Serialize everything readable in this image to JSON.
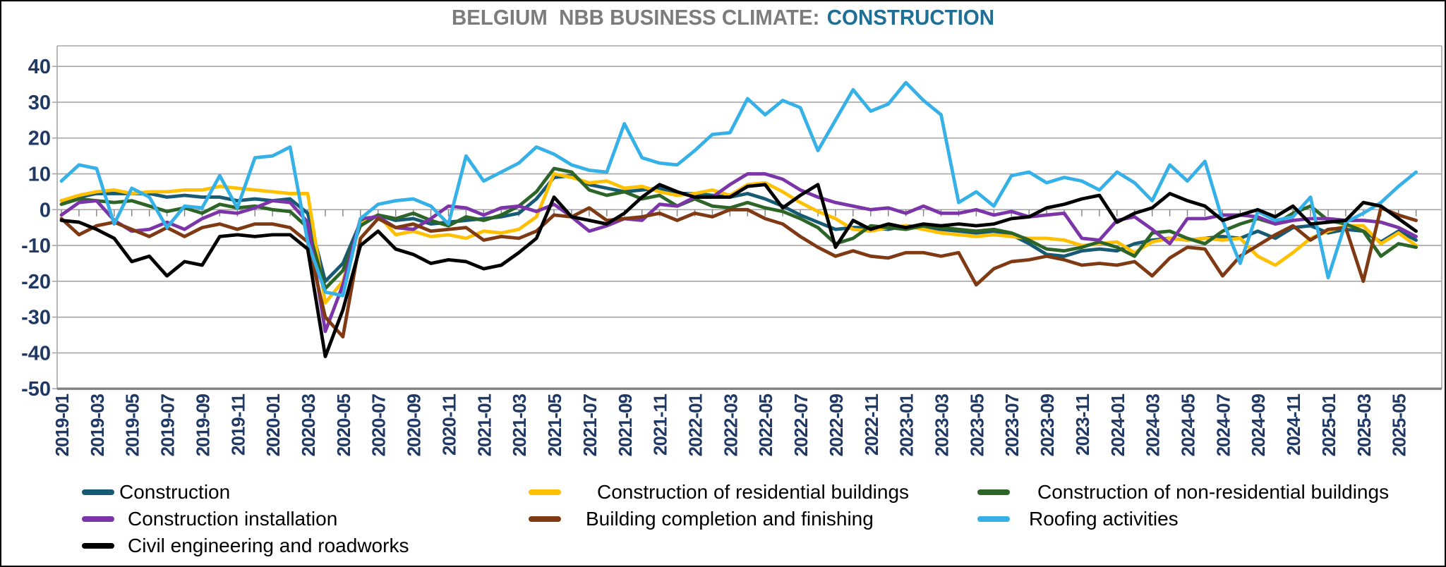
{
  "title": {
    "prefix": "BELGIUM  NBB BUSINESS CLIMATE:",
    "highlight": "CONSTRUCTION"
  },
  "colors": {
    "title_gray": "#7C7C7C",
    "title_accent": "#1F6E96",
    "axis_label": "#1F3864",
    "gridline": "#A6A6A6",
    "axis_line": "#808080",
    "frame": "#000000",
    "background": "#FFFFFF"
  },
  "chart_data": {
    "type": "line",
    "title": "BELGIUM  NBB BUSINESS CLIMATE: CONSTRUCTION",
    "xlabel": "",
    "ylabel": "",
    "ylim": [
      -50,
      40
    ],
    "y_ticks": [
      40,
      30,
      20,
      10,
      0,
      -10,
      -20,
      -30,
      -40,
      -50
    ],
    "grid": "horizontal",
    "legend_position": "bottom",
    "x": [
      "2019-01",
      "2019-02",
      "2019-03",
      "2019-04",
      "2019-05",
      "2019-06",
      "2019-07",
      "2019-08",
      "2019-09",
      "2019-10",
      "2019-11",
      "2019-12",
      "2020-01",
      "2020-02",
      "2020-03",
      "2020-04",
      "2020-05",
      "2020-06",
      "2020-07",
      "2020-08",
      "2020-09",
      "2020-10",
      "2020-11",
      "2020-12",
      "2021-01",
      "2021-02",
      "2021-03",
      "2021-04",
      "2021-05",
      "2021-06",
      "2021-07",
      "2021-08",
      "2021-09",
      "2021-10",
      "2021-11",
      "2021-12",
      "2022-01",
      "2022-02",
      "2022-03",
      "2022-04",
      "2022-05",
      "2022-06",
      "2022-07",
      "2022-08",
      "2022-09",
      "2022-10",
      "2022-11",
      "2022-12",
      "2023-01",
      "2023-02",
      "2023-03",
      "2023-04",
      "2023-05",
      "2023-06",
      "2023-07",
      "2023-08",
      "2023-09",
      "2023-10",
      "2023-11",
      "2023-12",
      "2024-01",
      "2024-02",
      "2024-03",
      "2024-04",
      "2024-05",
      "2024-06",
      "2024-07",
      "2024-08",
      "2024-09",
      "2024-10",
      "2024-11",
      "2024-12",
      "2025-01",
      "2025-02",
      "2025-03",
      "2025-04",
      "2025-05",
      "2025-06"
    ],
    "x_tick_labels": [
      "2019-01",
      "2019-03",
      "2019-05",
      "2019-07",
      "2019-09",
      "2019-11",
      "2020-01",
      "2020-03",
      "2020-05",
      "2020-07",
      "2020-09",
      "2020-11",
      "2021-01",
      "2021-03",
      "2021-05",
      "2021-07",
      "2021-09",
      "2021-11",
      "2022-01",
      "2022-03",
      "2022-05",
      "2022-07",
      "2022-09",
      "2022-11",
      "2023-01",
      "2023-03",
      "2023-05",
      "2023-07",
      "2023-09",
      "2023-11",
      "2024-01",
      "2024-03",
      "2024-05",
      "2024-07",
      "2024-09",
      "2024-11",
      "2025-01",
      "2025-03",
      "2025-05"
    ],
    "series": [
      {
        "name": "Construction",
        "color": "#175A73",
        "values": [
          2.5,
          3.5,
          4.5,
          4.5,
          4.5,
          4.5,
          3.5,
          4,
          3.5,
          3.5,
          2.5,
          3,
          2.5,
          3,
          -1,
          -20,
          -15,
          -3.5,
          -1.5,
          -3,
          -2.5,
          -4,
          -3.5,
          -3,
          -2.5,
          -2,
          -1,
          3,
          9,
          9.5,
          7,
          6,
          5,
          5.5,
          6,
          4.5,
          4.5,
          4,
          3.5,
          4.5,
          3,
          1,
          -1.5,
          -3.5,
          -5.5,
          -5,
          -5,
          -5.5,
          -4.5,
          -5,
          -5.5,
          -6,
          -6.5,
          -6,
          -7,
          -9.5,
          -12.5,
          -13,
          -11.5,
          -11,
          -11.5,
          -9.5,
          -8.5,
          -8,
          -8.5,
          -8,
          -7.5,
          -8,
          -6,
          -8,
          -5,
          -4.5,
          -6.5,
          -5.5,
          -6,
          -9,
          -6,
          -8.5
        ]
      },
      {
        "name": "Construction of residential buildings",
        "color": "#FFC002",
        "values": [
          2.5,
          4,
          5,
          5.5,
          4.5,
          5,
          5,
          5.5,
          5.5,
          6.5,
          6,
          5.5,
          5,
          4.5,
          4.5,
          -26,
          -20,
          -4,
          -1.5,
          -7,
          -6,
          -7.5,
          -7,
          -8,
          -6,
          -6.5,
          -5.5,
          -2,
          10,
          9,
          7.5,
          8,
          6,
          6.5,
          5,
          4,
          4.5,
          5.5,
          4,
          7,
          7.5,
          5,
          2,
          -0.5,
          -2.5,
          -5.5,
          -6,
          -5,
          -4.5,
          -5.5,
          -6.5,
          -7,
          -7.5,
          -7,
          -7.5,
          -8,
          -8,
          -8.5,
          -10,
          -9.5,
          -9,
          -12,
          -9,
          -8,
          -8.5,
          -8,
          -8.5,
          -8,
          -13,
          -15.5,
          -12,
          -8,
          -6,
          -4.5,
          -4.5,
          -9.5,
          -6.5,
          -10
        ]
      },
      {
        "name": "Construction of non-residential buildings",
        "color": "#2D6428",
        "values": [
          1.5,
          3,
          2.5,
          2,
          2.5,
          1,
          -0.5,
          0.5,
          -1,
          1.5,
          0.5,
          1,
          0,
          -0.5,
          -5,
          -22,
          -17,
          -4.5,
          -1.5,
          -2.5,
          -1,
          -3,
          -4.5,
          -2,
          -3,
          -1.5,
          1,
          5,
          11.5,
          10.5,
          5.5,
          4,
          5,
          3,
          4,
          1,
          3,
          1,
          0.5,
          2,
          0.5,
          -0.5,
          -2.5,
          -5,
          -9.5,
          -8,
          -4.5,
          -5,
          -5.5,
          -4.5,
          -5,
          -5.5,
          -6,
          -5.5,
          -6.5,
          -8.5,
          -11,
          -11.5,
          -10.5,
          -9,
          -10.5,
          -13,
          -6.5,
          -6,
          -8,
          -9.5,
          -6,
          -4,
          -2.5,
          -4,
          -1,
          1,
          -3,
          -4,
          -6,
          -13,
          -9.5,
          -10.5
        ]
      },
      {
        "name": "Construction installation",
        "color": "#7C35A8",
        "values": [
          -1.5,
          2,
          2.5,
          -3,
          -6,
          -5.5,
          -3.5,
          -5.5,
          -2.5,
          -0.5,
          -1,
          0.5,
          2.5,
          2,
          -3.5,
          -34,
          -21,
          -2.5,
          -2,
          -5,
          -5.5,
          -2.5,
          1,
          0.5,
          -1.5,
          0.5,
          1,
          -0.5,
          1.5,
          -2,
          -6,
          -4.5,
          -2.5,
          -3,
          1.5,
          1,
          3.5,
          3.5,
          7,
          10,
          10,
          8.5,
          5.5,
          3.5,
          2,
          1,
          0,
          0.5,
          -1,
          1,
          -1,
          -1,
          0,
          -1.5,
          -0.5,
          -2,
          -1.5,
          -1,
          -8,
          -8.5,
          -3,
          -2,
          -5.5,
          -9.5,
          -2.5,
          -2.5,
          -1.5,
          -1.5,
          -2,
          -4,
          -3,
          -2.5,
          -2.5,
          -3,
          -3,
          -3.5,
          -5,
          -7.5
        ]
      },
      {
        "name": "Building completion and finishing",
        "color": "#7F3A13",
        "values": [
          -2.5,
          -7,
          -4.5,
          -3.5,
          -5.5,
          -7.5,
          -5,
          -7.5,
          -5,
          -4,
          -5.5,
          -4,
          -4,
          -5,
          -9,
          -30,
          -35.5,
          -8,
          -2.5,
          -5,
          -4,
          -6,
          -5.5,
          -5,
          -8.5,
          -7.5,
          -8,
          -6,
          -1.5,
          -2,
          0.5,
          -3,
          -2.5,
          -2,
          -1,
          -3,
          -1,
          -2,
          0,
          0,
          -2.5,
          -4,
          -7.5,
          -10.5,
          -13,
          -11.5,
          -13,
          -13.5,
          -12,
          -12,
          -13,
          -12,
          -21,
          -16.5,
          -14.5,
          -14,
          -13,
          -14,
          -15.5,
          -15,
          -15.5,
          -14.5,
          -18.5,
          -13.5,
          -10.5,
          -11,
          -18.5,
          -13,
          -10,
          -7,
          -4.5,
          -8.5,
          -5.5,
          -5,
          -20,
          0.5,
          -1.5,
          -3
        ]
      },
      {
        "name": "Roofing activities",
        "color": "#35B1E8",
        "values": [
          8,
          12.5,
          11.5,
          -4,
          6,
          3.5,
          -5,
          1,
          0.5,
          9.5,
          0.5,
          14.5,
          15,
          17.5,
          -9,
          -23,
          -24,
          -2.5,
          1.5,
          2.5,
          3,
          1,
          -4,
          15,
          8,
          10.5,
          13,
          17.5,
          15.5,
          12.5,
          11,
          10.5,
          24,
          14.5,
          13,
          12.5,
          16.5,
          21,
          21.5,
          31,
          26.5,
          30.5,
          28.5,
          16.5,
          25,
          33.5,
          27.5,
          29.5,
          35.5,
          30.5,
          26.5,
          2,
          5,
          1,
          9.5,
          10.5,
          7.5,
          9,
          8,
          5.5,
          10.5,
          7.5,
          2.5,
          12.5,
          8,
          13.5,
          -3,
          -15,
          -0.5,
          -3,
          -2,
          3.5,
          -19,
          -3.5,
          -1,
          2,
          6.5,
          10.5
        ]
      },
      {
        "name": "Civil engineering and roadworks",
        "color": "#000000",
        "values": [
          -3,
          -3.5,
          -5.5,
          -8,
          -14.5,
          -13,
          -18.5,
          -14.5,
          -15.5,
          -7.5,
          -7,
          -7.5,
          -7,
          -7,
          -11,
          -41,
          -28,
          -10,
          -6,
          -11,
          -12.5,
          -15,
          -14,
          -14.5,
          -16.5,
          -15.5,
          -12,
          -8,
          3.5,
          -2,
          -3,
          -4,
          -1,
          3.5,
          7,
          5,
          3.5,
          3.5,
          3.5,
          6.5,
          7,
          0.5,
          4,
          7,
          -10.5,
          -3,
          -5.5,
          -4,
          -5,
          -4,
          -4.5,
          -4,
          -4.5,
          -4,
          -2.5,
          -2,
          0.5,
          1.5,
          3,
          4,
          -3.5,
          -1,
          0.5,
          4.5,
          2.5,
          1,
          -3,
          -1.5,
          0,
          -2,
          1,
          -4,
          -3.5,
          -3,
          2,
          1,
          -2.5,
          -6
        ]
      }
    ]
  }
}
